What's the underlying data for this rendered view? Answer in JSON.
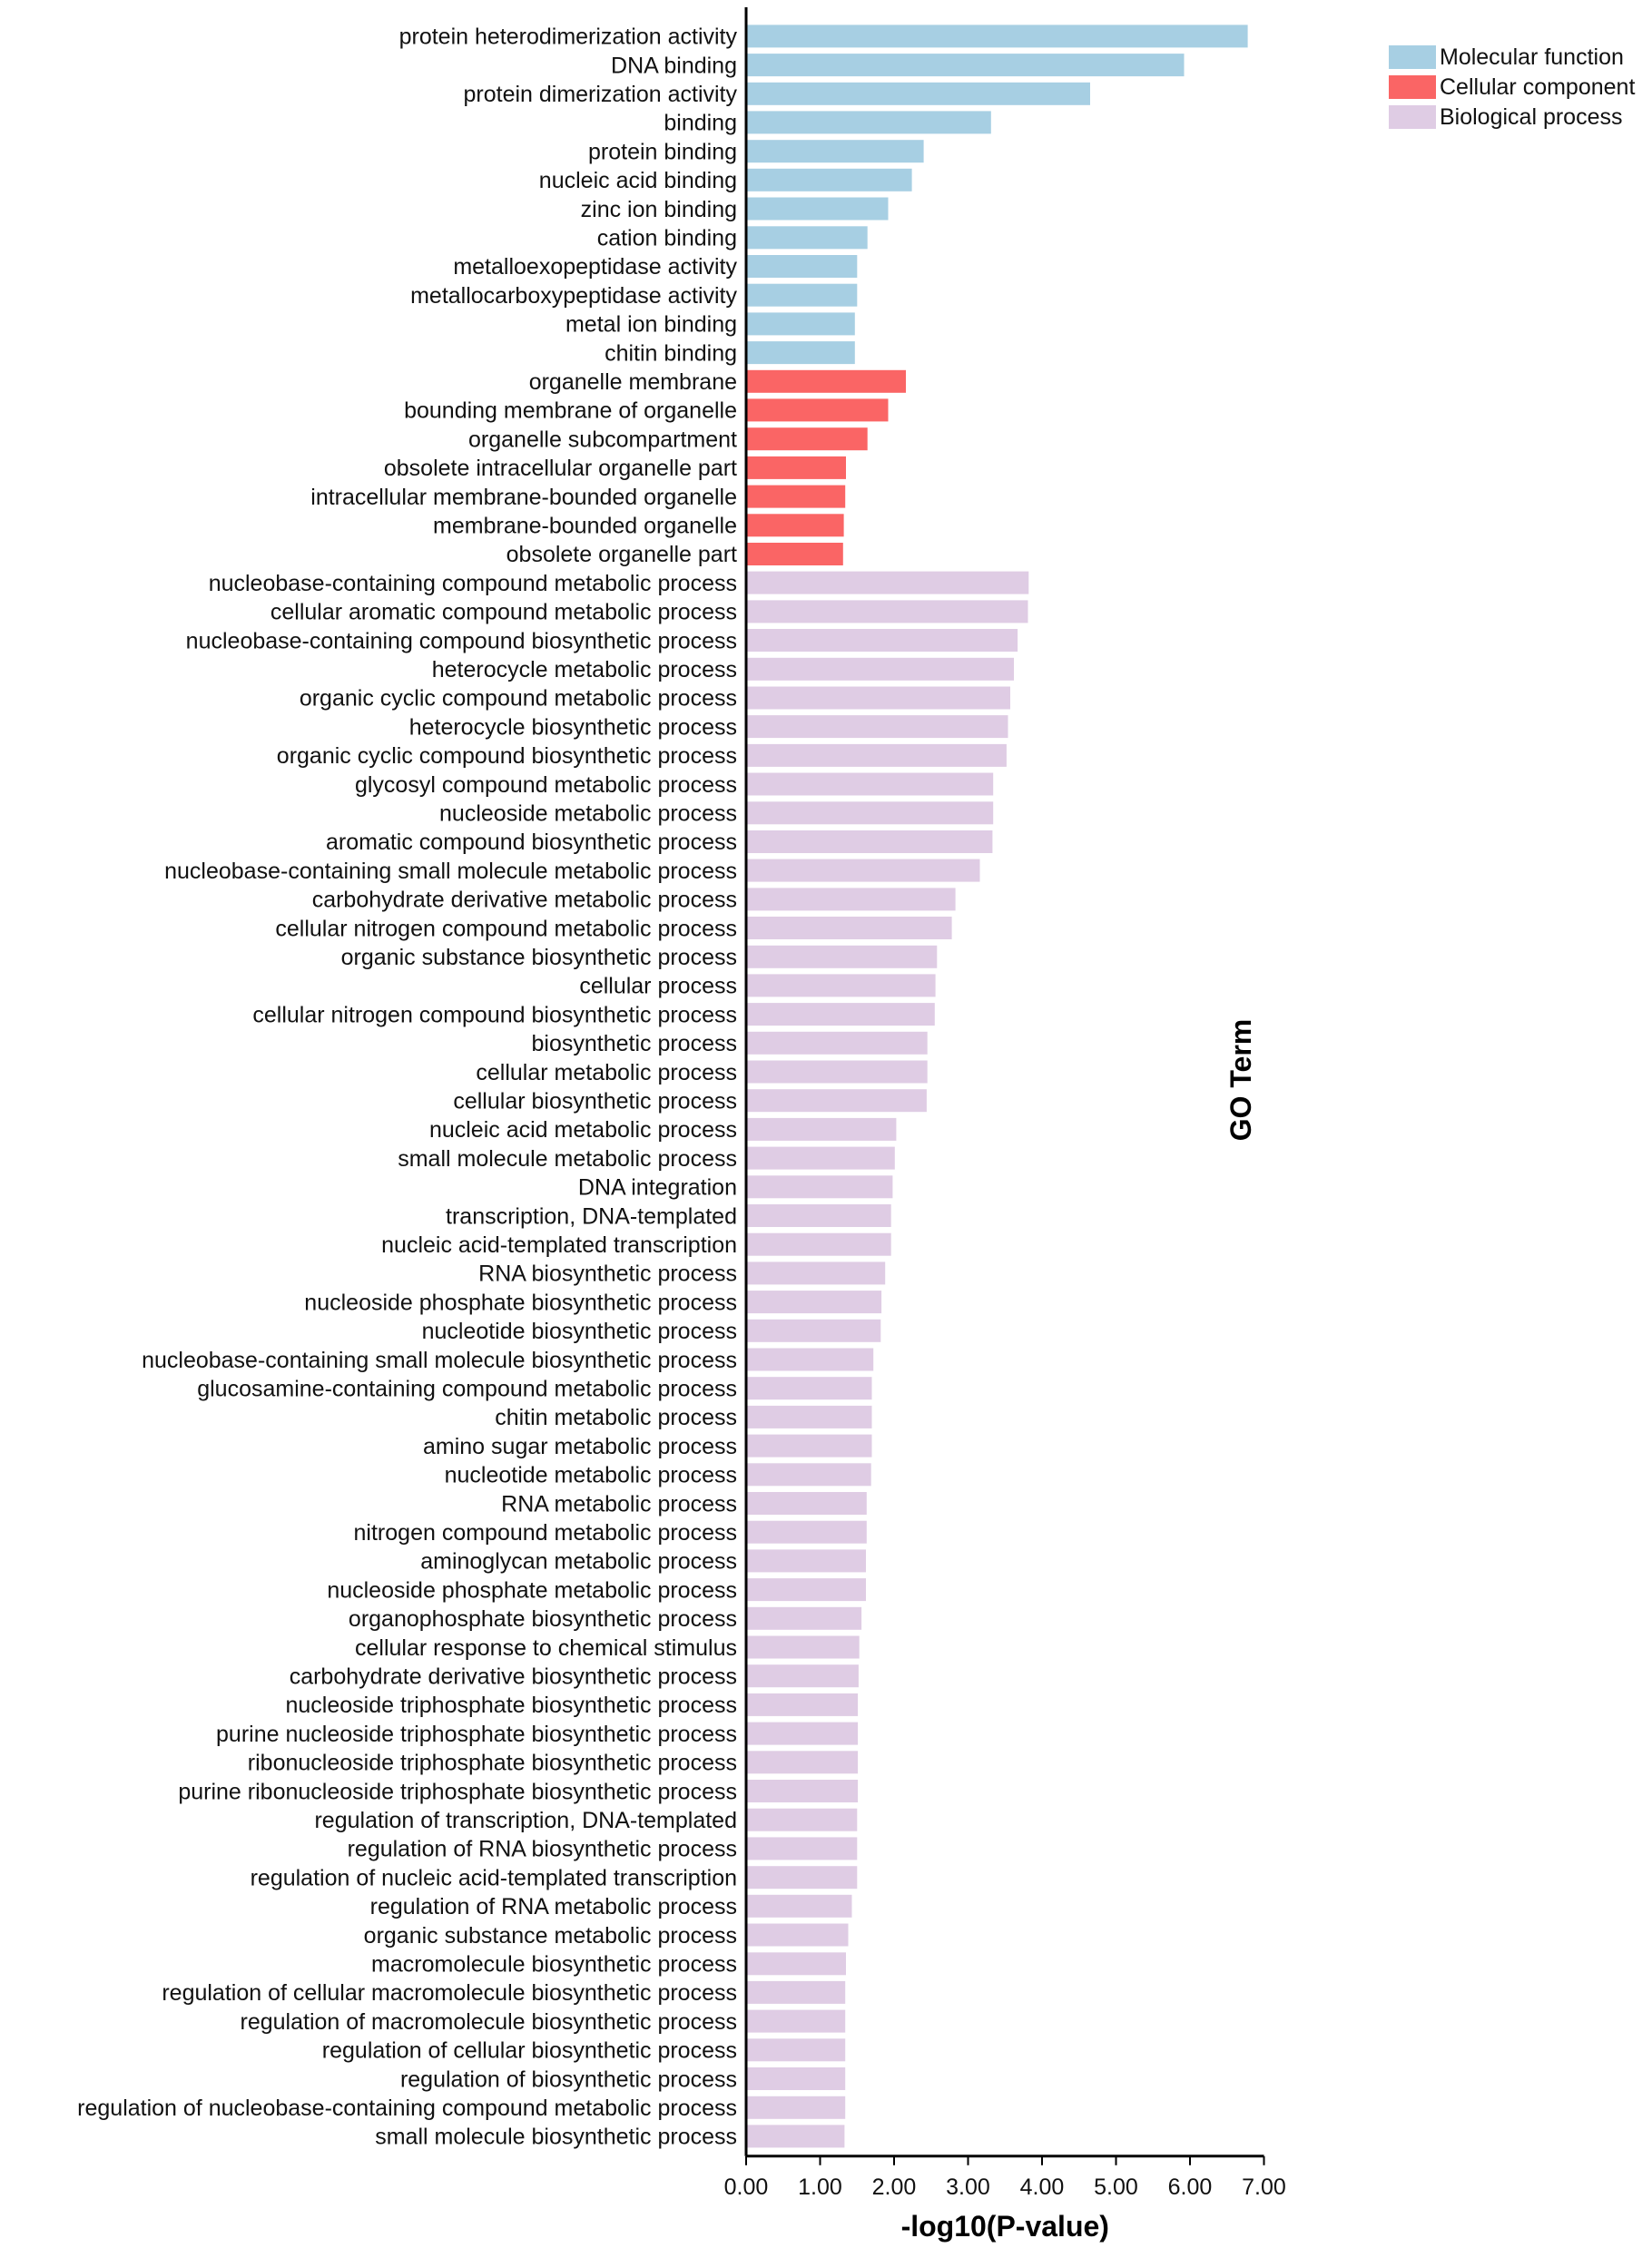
{
  "chart_data": {
    "type": "bar",
    "orientation": "horizontal",
    "title": "",
    "xlabel": "-log10(P-value)",
    "ylabel": "GO Term",
    "xlim": [
      0,
      7
    ],
    "xticks": [
      "0.00",
      "1.00",
      "2.00",
      "3.00",
      "4.00",
      "5.00",
      "6.00",
      "7.00"
    ],
    "grid": false,
    "legend": {
      "placement": "top-right",
      "entries": [
        {
          "name": "Molecular function",
          "color": "#a7cfe3"
        },
        {
          "name": "Cellular component",
          "color": "#fa6565"
        },
        {
          "name": "Biological process",
          "color": "#dfcce4"
        }
      ]
    },
    "series": [
      {
        "name": "Molecular function",
        "color": "#a7cfe3",
        "categories": [
          "protein heterodimerization activity",
          "DNA binding",
          "protein dimerization activity",
          "binding",
          "protein binding",
          "nucleic acid binding",
          "zinc ion binding",
          "cation binding",
          "metalloexopeptidase activity",
          "metallocarboxypeptidase activity",
          "metal ion binding",
          "chitin binding"
        ],
        "values": [
          6.78,
          5.92,
          4.65,
          3.31,
          2.4,
          2.24,
          1.92,
          1.64,
          1.5,
          1.5,
          1.47,
          1.47
        ]
      },
      {
        "name": "Cellular component",
        "color": "#fa6565",
        "categories": [
          "organelle membrane",
          "bounding membrane of organelle",
          "organelle subcompartment",
          "obsolete intracellular organelle part",
          "intracellular membrane-bounded organelle",
          "membrane-bounded organelle",
          "obsolete organelle part"
        ],
        "values": [
          2.16,
          1.92,
          1.64,
          1.35,
          1.34,
          1.32,
          1.31
        ]
      },
      {
        "name": "Biological process",
        "color": "#dfcce4",
        "categories": [
          "nucleobase-containing compound metabolic process",
          "cellular aromatic compound metabolic process",
          "nucleobase-containing compound biosynthetic process",
          "heterocycle metabolic process",
          "organic cyclic compound metabolic process",
          "heterocycle biosynthetic process",
          "organic cyclic compound biosynthetic process",
          "glycosyl compound metabolic process",
          "nucleoside metabolic process",
          "aromatic compound biosynthetic process",
          "nucleobase-containing small molecule metabolic process",
          "carbohydrate derivative metabolic process",
          "cellular nitrogen compound metabolic process",
          "organic substance biosynthetic process",
          "cellular process",
          "cellular nitrogen compound biosynthetic process",
          "biosynthetic process",
          "cellular metabolic process",
          "cellular biosynthetic process",
          "nucleic acid metabolic process",
          "small molecule metabolic process",
          "DNA integration",
          "transcription, DNA-templated",
          "nucleic acid-templated transcription",
          "RNA biosynthetic process",
          "nucleoside phosphate biosynthetic process",
          "nucleotide biosynthetic process",
          "nucleobase-containing small molecule biosynthetic process",
          "glucosamine-containing compound metabolic process",
          "chitin metabolic process",
          "amino sugar metabolic process",
          "nucleotide metabolic process",
          "RNA metabolic process",
          "nitrogen compound metabolic process",
          "aminoglycan metabolic process",
          "nucleoside phosphate metabolic process",
          "organophosphate biosynthetic process",
          "cellular response to chemical stimulus",
          "carbohydrate derivative biosynthetic process",
          "nucleoside triphosphate biosynthetic process",
          "purine nucleoside triphosphate biosynthetic process",
          "ribonucleoside triphosphate biosynthetic process",
          "purine ribonucleoside triphosphate biosynthetic process",
          "regulation of transcription, DNA-templated",
          "regulation of RNA biosynthetic process",
          "regulation of nucleic acid-templated transcription",
          "regulation of RNA metabolic process",
          "organic substance metabolic process",
          "macromolecule biosynthetic process",
          "regulation of cellular macromolecule biosynthetic process",
          "regulation of macromolecule biosynthetic process",
          "regulation of cellular biosynthetic process",
          "regulation of biosynthetic process",
          "regulation of nucleobase-containing compound metabolic process",
          "small molecule biosynthetic process"
        ],
        "values": [
          3.82,
          3.81,
          3.67,
          3.62,
          3.57,
          3.54,
          3.52,
          3.34,
          3.34,
          3.33,
          3.16,
          2.83,
          2.78,
          2.58,
          2.56,
          2.55,
          2.45,
          2.45,
          2.44,
          2.03,
          2.01,
          1.98,
          1.96,
          1.96,
          1.88,
          1.83,
          1.82,
          1.72,
          1.7,
          1.7,
          1.7,
          1.69,
          1.63,
          1.63,
          1.62,
          1.62,
          1.56,
          1.53,
          1.52,
          1.51,
          1.51,
          1.51,
          1.51,
          1.5,
          1.5,
          1.5,
          1.43,
          1.38,
          1.35,
          1.34,
          1.34,
          1.34,
          1.34,
          1.34,
          1.33
        ]
      }
    ]
  }
}
